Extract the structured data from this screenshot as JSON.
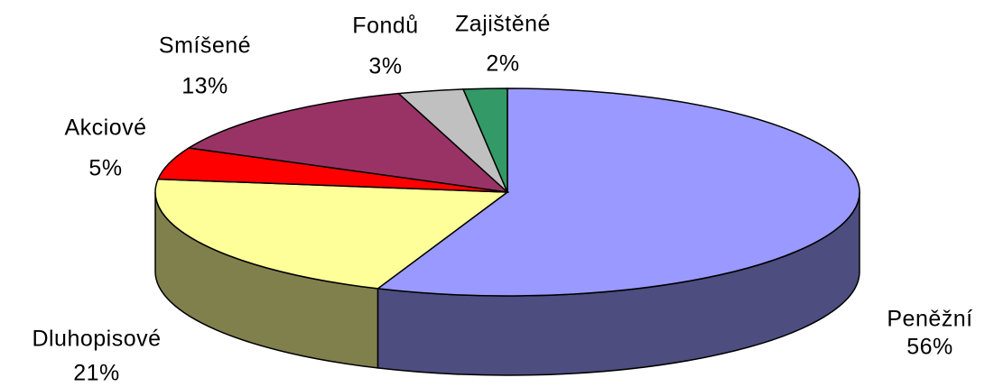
{
  "chart_data": {
    "type": "pie3d",
    "categories": [
      "Peněžní",
      "Dluhopisové",
      "Akciové",
      "Smíšené",
      "Fondů",
      "Zajištěné"
    ],
    "values": [
      56,
      21,
      5,
      13,
      3,
      2
    ],
    "value_labels": [
      "56%",
      "21%",
      "5%",
      "13%",
      "3%",
      "2%"
    ],
    "colors": [
      "#9999ff",
      "#ffff99",
      "#ff0000",
      "#993366",
      "#c0c0c0",
      "#339966"
    ]
  }
}
